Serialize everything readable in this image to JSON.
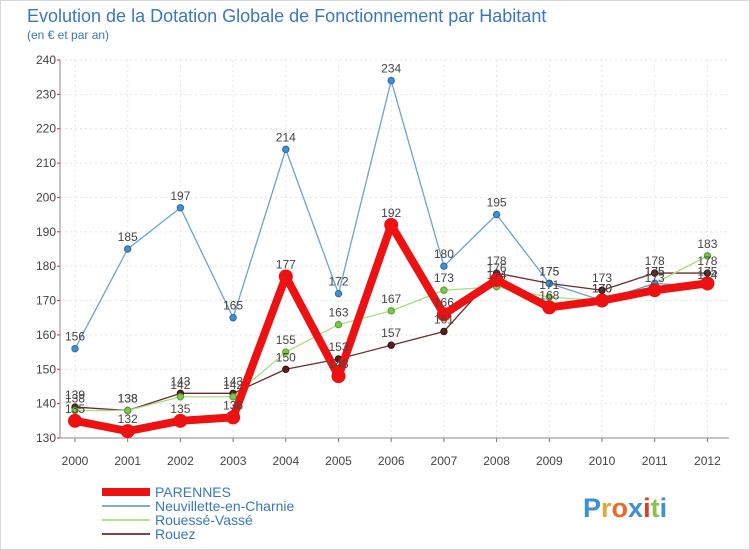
{
  "chart_data": {
    "type": "line",
    "title": "Evolution de la Dotation Globale de Fonctionnement par Habitant",
    "subtitle": "(en € et par an)",
    "xlabel": "",
    "ylabel": "",
    "categories": [
      "2000",
      "2001",
      "2002",
      "2003",
      "2004",
      "2005",
      "2006",
      "2007",
      "2008",
      "2009",
      "2010",
      "2011",
      "2012"
    ],
    "ylim": [
      130,
      240
    ],
    "yticks": [
      130,
      140,
      150,
      160,
      170,
      180,
      190,
      200,
      210,
      220,
      230,
      240
    ],
    "grid": true,
    "legend_position": "bottom-left",
    "series": [
      {
        "name": "Rouez",
        "color": "#6e2a2a",
        "values": [
          139,
          138,
          143,
          143,
          150,
          153,
          157,
          161,
          178,
          175,
          173,
          178,
          178
        ],
        "labels": [
          "139",
          "138",
          "143",
          "143",
          "150",
          "153",
          "157",
          "161",
          "178",
          "175",
          "173",
          "178",
          "178"
        ]
      },
      {
        "name": "Rouessé-Vassé",
        "color": "#a6e07e",
        "values": [
          138,
          138,
          142,
          142,
          155,
          163,
          167,
          173,
          174,
          171,
          170,
          175,
          183
        ],
        "labels": [
          "138",
          "138",
          "142",
          "142",
          "155",
          "163",
          "167",
          "173",
          "174",
          "171",
          "170",
          "175",
          "183"
        ]
      },
      {
        "name": "Neuvillette-en-Charnie",
        "color": "#6ba3cf",
        "values": [
          156,
          185,
          197,
          165,
          214,
          172,
          234,
          180,
          195,
          175,
          170,
          175,
          174
        ],
        "labels": [
          "156",
          "185",
          "197",
          "165",
          "214",
          "172",
          "234",
          "180",
          "195",
          "175",
          "170",
          "175",
          "174"
        ]
      },
      {
        "name": "PARENNES",
        "color": "#ee1111",
        "values": [
          135,
          132,
          135,
          136,
          177,
          148,
          192,
          166,
          176,
          168,
          170,
          173,
          175
        ],
        "labels": [
          "135",
          "132",
          "135",
          "136",
          "177",
          "148",
          "192",
          "166",
          "176",
          "168",
          "170",
          "173",
          "175"
        ]
      }
    ],
    "legend": [
      "PARENNES",
      "Neuvillette-en-Charnie",
      "Rouessé-Vassé",
      "Rouez"
    ]
  },
  "logo": {
    "text": "Proxiti"
  }
}
